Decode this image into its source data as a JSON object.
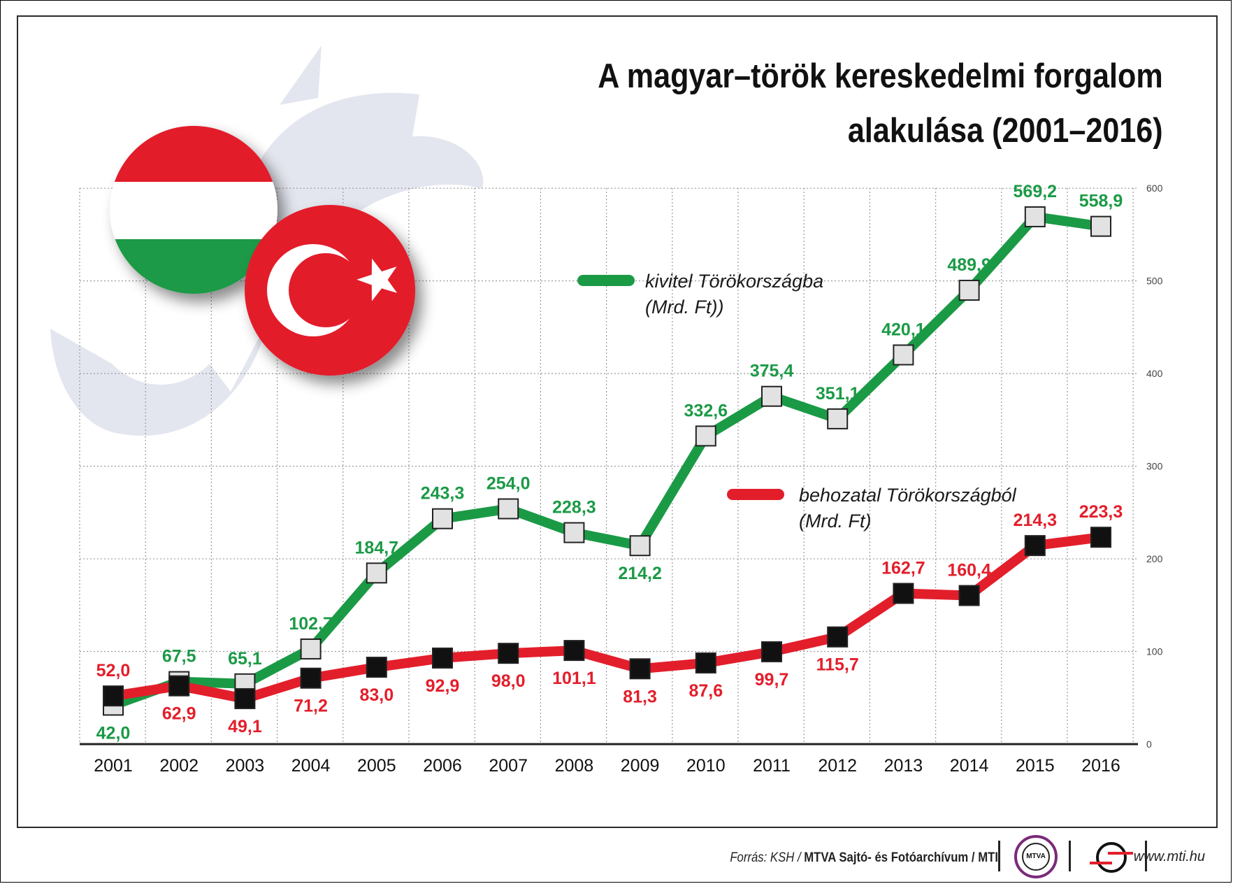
{
  "title": {
    "line1": "A magyar–török kereskedelmi forgalom",
    "line2": "alakulása (2001–2016)"
  },
  "chart_data": {
    "type": "line",
    "categories": [
      "2001",
      "2002",
      "2003",
      "2004",
      "2005",
      "2006",
      "2007",
      "2008",
      "2009",
      "2010",
      "2011",
      "2012",
      "2013",
      "2014",
      "2015",
      "2016"
    ],
    "series": [
      {
        "name": "kivitel Törökországba (Mrd. Ft))",
        "legend_line1": "kivitel Törökországba",
        "legend_line2": "(Mrd. Ft))",
        "color": "#1b9a46",
        "marker": "#e2e2e2",
        "values": [
          42.0,
          67.5,
          65.1,
          102.7,
          184.7,
          243.3,
          254.0,
          228.3,
          214.2,
          332.6,
          375.4,
          351.1,
          420.1,
          489.9,
          569.2,
          558.9
        ],
        "labels": [
          "42,0",
          "67,5",
          "65,1",
          "102,7",
          "184,7",
          "243,3",
          "254,0",
          "228,3",
          "214,2",
          "332,6",
          "375,4",
          "351,1",
          "420,1",
          "489,9",
          "569,2",
          "558,9"
        ],
        "label_pos": [
          "below",
          "above",
          "above",
          "above",
          "above",
          "above",
          "above",
          "above",
          "below",
          "above",
          "above",
          "above",
          "above",
          "above",
          "above",
          "above"
        ]
      },
      {
        "name": "behozatal Törökországból (Mrd. Ft)",
        "legend_line1": "behozatal Törökországból",
        "legend_line2": "(Mrd. Ft)",
        "color": "#e31e2b",
        "marker": "#111111",
        "values": [
          52.0,
          62.9,
          49.1,
          71.2,
          83.0,
          92.9,
          98.0,
          101.1,
          81.3,
          87.6,
          99.7,
          115.7,
          162.7,
          160.4,
          214.3,
          223.3
        ],
        "labels": [
          "52,0",
          "62,9",
          "49,1",
          "71,2",
          "83,0",
          "92,9",
          "98,0",
          "101,1",
          "81,3",
          "87,6",
          "99,7",
          "115,7",
          "162,7",
          "160,4",
          "214,3",
          "223,3"
        ],
        "label_pos": [
          "above",
          "below",
          "below",
          "below",
          "below",
          "below",
          "below",
          "below",
          "below",
          "below",
          "below",
          "below",
          "above",
          "above",
          "above",
          "above"
        ]
      }
    ],
    "yticks": [
      0,
      100,
      200,
      300,
      400,
      500,
      600
    ],
    "ylim": [
      0,
      600
    ],
    "grid": true,
    "legend_placement": "center"
  },
  "colors": {
    "export": "#1b9a46",
    "import": "#e31e2b",
    "grid": "#9a9a9a",
    "flag_hu_red": "#e31e2b",
    "flag_hu_green": "#1b9a46",
    "flag_tr_red": "#e31e2b",
    "arrow": "#e4e6ef"
  },
  "icons": {
    "hungary_flag": "hungary-flag-icon",
    "turkey_flag": "turkey-flag-icon",
    "exchange_arrows": "exchange-arrows-icon"
  },
  "footer": {
    "source_prefix": "Forrás: KSH / ",
    "source_org": "MTVA Sajtó- és Fotóarchívum / MTI",
    "mtva_logo_text": "MTVA",
    "website": "www.mti.hu"
  }
}
